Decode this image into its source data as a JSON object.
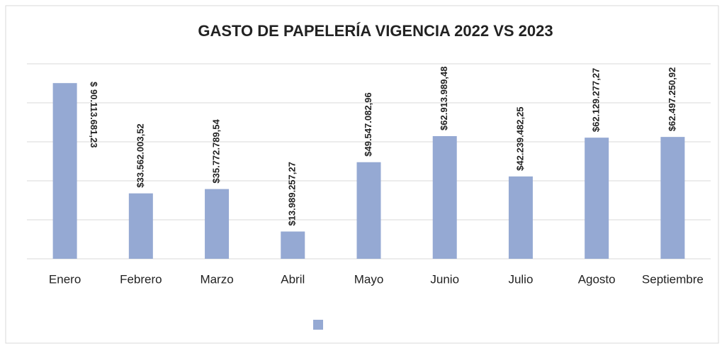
{
  "chart_data": {
    "type": "bar",
    "title": "GASTO DE PAPELERÍA VIGENCIA 2022 VS 2023",
    "categories": [
      "Enero",
      "Febrero",
      "Marzo",
      "Abril",
      "Mayo",
      "Junio",
      "Julio",
      "Agosto",
      "Septiembre"
    ],
    "values": [
      90113681.23,
      33562003.52,
      35772789.54,
      13989257.27,
      49547082.96,
      62913989.48,
      42239482.25,
      62129277.27,
      62497250.92
    ],
    "value_labels": [
      "$ 90.113.681,23",
      "$33.562.003,52",
      "$35.772.789,54",
      "$13.989.257,27",
      "$49.547.082,96",
      "$62.913.989,48",
      "$42.239.482,25",
      "$62.129.277,27",
      "$62.497.250,92"
    ],
    "color": "#95a9d3",
    "ylim": [
      0,
      100000000
    ],
    "yticks": [
      0,
      20000000,
      40000000,
      60000000,
      80000000,
      100000000
    ],
    "grid": true
  }
}
